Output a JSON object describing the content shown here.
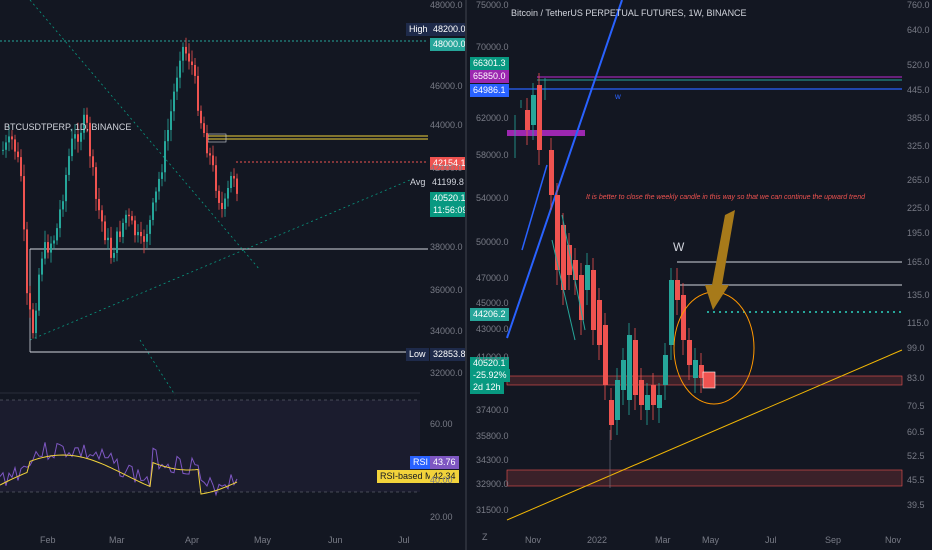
{
  "left": {
    "title": "BTCUSDTPERP, 1D, BINANCE",
    "price_axis": [
      "48000.0",
      "46000.0",
      "44000.0",
      "42000.0",
      "38000.0",
      "36000.0",
      "34000.0",
      "32000.0"
    ],
    "time_axis": [
      "Feb",
      "Mar",
      "Apr",
      "May",
      "Jun",
      "Jul"
    ],
    "rsi_axis": [
      "60.00",
      "40.00",
      "20.00"
    ],
    "tags": {
      "high_label": "High",
      "high_value": "48200.0",
      "line_48000": "48000.0",
      "level_1": "42154.1",
      "avg_label": "Avg",
      "avg_value": "41199.8",
      "last_price": "40520.1",
      "countdown": "11:56:09",
      "low_label": "Low",
      "low_value": "32853.8",
      "rsi_label": "RSI",
      "rsi_value": "43.76",
      "rsi_ma_label": "RSI-based MA",
      "rsi_ma_value": "42.34"
    }
  },
  "right": {
    "title": "Bitcoin / TetherUS PERPETUAL FUTURES, 1W, BINANCE",
    "price_axis": [
      "75000.0",
      "70000.0",
      "66301.3",
      "65850.0",
      "64986.1",
      "62000.0",
      "58000.0",
      "54000.0",
      "50000.0",
      "47000.0",
      "45000.0",
      "44206.2",
      "43000.0",
      "41000.0",
      "37400.0",
      "35800.0",
      "34300.0",
      "32900.0",
      "31500.0"
    ],
    "right_axis": [
      "760.0",
      "640.0",
      "520.0",
      "445.0",
      "385.0",
      "325.0",
      "265.0",
      "225.0",
      "195.0",
      "165.0",
      "135.0",
      "115.0",
      "99.0",
      "83.0",
      "70.5",
      "60.5",
      "52.5",
      "45.5",
      "39.5"
    ],
    "time_axis": [
      "Nov",
      "2022",
      "Mar",
      "May",
      "Jul",
      "Sep",
      "Nov"
    ],
    "tags": {
      "t1": "66301.3",
      "t2": "65850.0",
      "t3": "64986.1",
      "t4": "44206.2",
      "last_price": "40520.1",
      "change": "-25.92%",
      "countdown": "2d 12h"
    },
    "annotation": "It is better to close the weekly candle in this way so that we can continue the upward trend",
    "w_label": "W",
    "small_w": "w",
    "zoom_label": "Z"
  },
  "colors": {
    "bg": "#131722",
    "up": "#26a69a",
    "down": "#ef5350",
    "blue": "#2962ff",
    "orange": "#ff9800",
    "purple": "#9c27b0"
  }
}
